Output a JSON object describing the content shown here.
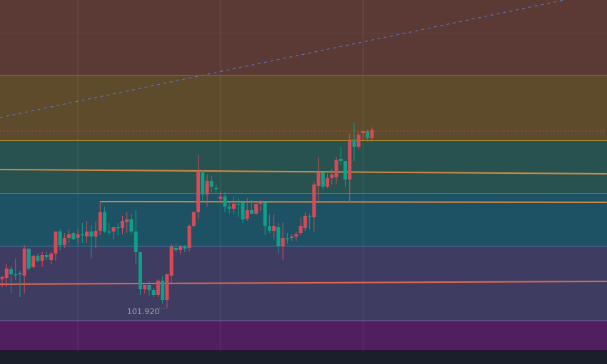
{
  "chart_data": {
    "type": "candlestick",
    "up_color": "#d94a57",
    "down_color": "#0fa088",
    "ylim": [
      101.32,
      106.24
    ],
    "bands": [
      {
        "from": 105.18,
        "to": 106.24,
        "fill": "#5b3a36",
        "line": "#c8643c"
      },
      {
        "from": 104.26,
        "to": 105.18,
        "fill": "#5e4b2c",
        "line": "#d4b42c"
      },
      {
        "from": 103.52,
        "to": 104.26,
        "fill": "#28524f",
        "line": "#1fa99a"
      },
      {
        "from": 102.78,
        "to": 103.52,
        "fill": "#1d5164",
        "line": "#3a8fc0"
      },
      {
        "from": 101.73,
        "to": 102.78,
        "fill": "#3f3c62",
        "line": "#9a6fc8"
      },
      {
        "from": 101.32,
        "to": 101.73,
        "fill": "#511e5f",
        "line": null
      }
    ],
    "trend_lines": [
      {
        "from_bar": -0.5,
        "from_price": 103.86,
        "to_bar": 135.7,
        "to_price": 103.8,
        "color": "#d48a45",
        "style": "solid"
      },
      {
        "from_bar": 22,
        "from_price": 103.41,
        "to_bar": 135.7,
        "to_price": 103.4,
        "color": "#d48a45",
        "style": "solid"
      },
      {
        "from_bar": -0.5,
        "from_price": 102.25,
        "to_bar": 135.7,
        "to_price": 102.29,
        "color": "#e06a50",
        "style": "solid"
      },
      {
        "from_bar": -0.5,
        "from_price": 104.59,
        "to_bar": 126.1,
        "to_price": 106.24,
        "color": "#5a7fd8",
        "style": "dashed"
      },
      {
        "from_bar": -0.5,
        "from_price": 104.4,
        "to_bar": 135.7,
        "to_price": 104.4,
        "color": "#c0504a",
        "style": "dotted"
      }
    ],
    "low_label": "101.920",
    "low_label_bar": 37,
    "grid_bars": [
      17,
      49,
      81
    ],
    "grid_prices": [
      105.77
    ],
    "ohlc": [
      [
        102.32,
        102.37,
        102.21,
        102.35
      ],
      [
        102.34,
        102.54,
        102.22,
        102.47
      ],
      [
        102.46,
        102.51,
        102.13,
        102.39
      ],
      [
        102.39,
        102.61,
        102.31,
        102.38
      ],
      [
        102.41,
        102.44,
        102.07,
        102.39
      ],
      [
        102.37,
        102.8,
        102.12,
        102.75
      ],
      [
        102.75,
        102.75,
        102.44,
        102.47
      ],
      [
        102.49,
        102.66,
        102.47,
        102.65
      ],
      [
        102.65,
        102.68,
        102.56,
        102.58
      ],
      [
        102.58,
        102.7,
        102.49,
        102.66
      ],
      [
        102.66,
        102.71,
        102.59,
        102.63
      ],
      [
        102.59,
        102.71,
        102.53,
        102.68
      ],
      [
        102.68,
        102.99,
        102.58,
        102.99
      ],
      [
        102.99,
        103.02,
        102.73,
        102.8
      ],
      [
        102.8,
        102.97,
        102.76,
        102.9
      ],
      [
        102.9,
        103.02,
        102.83,
        102.95
      ],
      [
        102.97,
        102.99,
        102.87,
        102.88
      ],
      [
        102.9,
        103.02,
        102.81,
        102.95
      ],
      [
        102.95,
        103.11,
        102.83,
        102.94
      ],
      [
        102.92,
        103.14,
        102.83,
        102.99
      ],
      [
        102.99,
        103.08,
        102.61,
        102.92
      ],
      [
        102.92,
        103.14,
        102.76,
        103.0
      ],
      [
        103.0,
        103.41,
        102.94,
        103.26
      ],
      [
        103.26,
        103.34,
        102.97,
        102.99
      ],
      [
        102.99,
        103.11,
        102.94,
        102.98
      ],
      [
        102.99,
        103.05,
        102.88,
        103.05
      ],
      [
        103.05,
        103.11,
        102.94,
        103.04
      ],
      [
        103.04,
        103.21,
        102.95,
        103.14
      ],
      [
        103.12,
        103.26,
        102.97,
        103.16
      ],
      [
        103.16,
        103.24,
        102.95,
        102.99
      ],
      [
        102.99,
        103.29,
        102.53,
        102.7
      ],
      [
        102.7,
        102.71,
        102.1,
        102.18
      ],
      [
        102.18,
        102.24,
        102.12,
        102.24
      ],
      [
        102.24,
        102.29,
        102.08,
        102.17
      ],
      [
        102.17,
        102.2,
        102.07,
        102.1
      ],
      [
        102.1,
        102.32,
        102.07,
        102.3
      ],
      [
        102.3,
        102.36,
        101.98,
        102.03
      ],
      [
        102.03,
        102.39,
        101.92,
        102.39
      ],
      [
        102.37,
        102.82,
        102.27,
        102.78
      ],
      [
        102.76,
        102.82,
        102.7,
        102.73
      ],
      [
        102.73,
        102.8,
        102.68,
        102.78
      ],
      [
        102.79,
        102.8,
        102.7,
        102.75
      ],
      [
        102.76,
        103.09,
        102.71,
        103.07
      ],
      [
        103.07,
        103.28,
        103.05,
        103.26
      ],
      [
        103.26,
        104.06,
        103.17,
        103.84
      ],
      [
        103.84,
        103.84,
        103.41,
        103.51
      ],
      [
        103.51,
        103.79,
        103.34,
        103.7
      ],
      [
        103.7,
        103.77,
        103.54,
        103.62
      ],
      [
        103.6,
        103.65,
        103.52,
        103.59
      ],
      [
        103.45,
        103.55,
        103.41,
        103.48
      ],
      [
        103.48,
        103.55,
        103.26,
        103.34
      ],
      [
        103.34,
        103.41,
        103.24,
        103.31
      ],
      [
        103.31,
        103.48,
        103.24,
        103.38
      ],
      [
        103.38,
        103.46,
        103.19,
        103.37
      ],
      [
        103.4,
        103.41,
        103.11,
        103.16
      ],
      [
        103.17,
        103.46,
        103.14,
        103.29
      ],
      [
        103.29,
        103.43,
        103.23,
        103.24
      ],
      [
        103.24,
        103.38,
        103.23,
        103.38
      ],
      [
        103.38,
        103.43,
        103.28,
        103.4
      ],
      [
        103.4,
        103.4,
        102.94,
        103.07
      ],
      [
        103.07,
        103.23,
        102.97,
        103.0
      ],
      [
        103.0,
        103.23,
        102.88,
        103.07
      ],
      [
        103.05,
        103.11,
        102.68,
        102.78
      ],
      [
        102.78,
        103.11,
        102.59,
        102.9
      ],
      [
        102.9,
        102.97,
        102.82,
        102.89
      ],
      [
        102.9,
        102.95,
        102.86,
        102.92
      ],
      [
        102.92,
        102.99,
        102.86,
        102.95
      ],
      [
        102.97,
        103.19,
        102.94,
        103.07
      ],
      [
        103.04,
        103.26,
        103.0,
        103.21
      ],
      [
        103.21,
        103.24,
        103.02,
        103.2
      ],
      [
        103.19,
        103.69,
        102.99,
        103.65
      ],
      [
        103.63,
        104.03,
        103.41,
        103.82
      ],
      [
        103.82,
        103.82,
        103.58,
        103.62
      ],
      [
        103.62,
        103.8,
        103.6,
        103.74
      ],
      [
        103.74,
        103.87,
        103.65,
        103.79
      ],
      [
        103.75,
        104.04,
        103.65,
        103.99
      ],
      [
        104.01,
        104.18,
        103.92,
        103.98
      ],
      [
        103.98,
        103.98,
        103.62,
        103.72
      ],
      [
        103.72,
        104.37,
        103.4,
        104.28
      ],
      [
        104.28,
        104.52,
        103.98,
        104.18
      ],
      [
        104.18,
        104.39,
        104.15,
        104.35
      ],
      [
        104.37,
        104.4,
        104.28,
        104.4
      ],
      [
        104.4,
        104.42,
        104.25,
        104.3
      ],
      [
        104.3,
        104.45,
        104.25,
        104.42
      ]
    ]
  }
}
